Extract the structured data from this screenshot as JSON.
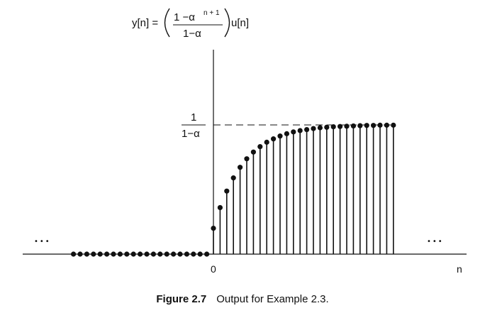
{
  "chart_data": {
    "type": "stem",
    "equation": {
      "lhs": "y[n] =",
      "num_main": "1 −α",
      "num_sup": "n + 1",
      "den": "1−α",
      "rhs": "u[n]"
    },
    "asymptote_label": {
      "num": "1",
      "den": "1−α"
    },
    "xlabel": "n",
    "origin_label": "0",
    "ellipsis_left": "•••",
    "ellipsis_right": "•••",
    "alpha": 0.8,
    "n_range": [
      -21,
      27
    ],
    "asymptote": 5.0,
    "values": [
      {
        "n": -21,
        "y": 0
      },
      {
        "n": -20,
        "y": 0
      },
      {
        "n": -19,
        "y": 0
      },
      {
        "n": -18,
        "y": 0
      },
      {
        "n": -17,
        "y": 0
      },
      {
        "n": -16,
        "y": 0
      },
      {
        "n": -15,
        "y": 0
      },
      {
        "n": -14,
        "y": 0
      },
      {
        "n": -13,
        "y": 0
      },
      {
        "n": -12,
        "y": 0
      },
      {
        "n": -11,
        "y": 0
      },
      {
        "n": -10,
        "y": 0
      },
      {
        "n": -9,
        "y": 0
      },
      {
        "n": -8,
        "y": 0
      },
      {
        "n": -7,
        "y": 0
      },
      {
        "n": -6,
        "y": 0
      },
      {
        "n": -5,
        "y": 0
      },
      {
        "n": -4,
        "y": 0
      },
      {
        "n": -3,
        "y": 0
      },
      {
        "n": -2,
        "y": 0
      },
      {
        "n": -1,
        "y": 0
      },
      {
        "n": 0,
        "y": 1.0
      },
      {
        "n": 1,
        "y": 1.8
      },
      {
        "n": 2,
        "y": 2.44
      },
      {
        "n": 3,
        "y": 2.95
      },
      {
        "n": 4,
        "y": 3.36
      },
      {
        "n": 5,
        "y": 3.69
      },
      {
        "n": 6,
        "y": 3.95
      },
      {
        "n": 7,
        "y": 4.16
      },
      {
        "n": 8,
        "y": 4.33
      },
      {
        "n": 9,
        "y": 4.46
      },
      {
        "n": 10,
        "y": 4.57
      },
      {
        "n": 11,
        "y": 4.66
      },
      {
        "n": 12,
        "y": 4.73
      },
      {
        "n": 13,
        "y": 4.78
      },
      {
        "n": 14,
        "y": 4.82
      },
      {
        "n": 15,
        "y": 4.86
      },
      {
        "n": 16,
        "y": 4.89
      },
      {
        "n": 17,
        "y": 4.91
      },
      {
        "n": 18,
        "y": 4.93
      },
      {
        "n": 19,
        "y": 4.94
      },
      {
        "n": 20,
        "y": 4.95
      },
      {
        "n": 21,
        "y": 4.96
      },
      {
        "n": 22,
        "y": 4.97
      },
      {
        "n": 23,
        "y": 4.98
      },
      {
        "n": 24,
        "y": 4.98
      },
      {
        "n": 25,
        "y": 4.99
      },
      {
        "n": 26,
        "y": 4.99
      },
      {
        "n": 27,
        "y": 4.99
      }
    ]
  },
  "caption": {
    "label": "Figure 2.7",
    "text": "Output for Example 2.3."
  }
}
